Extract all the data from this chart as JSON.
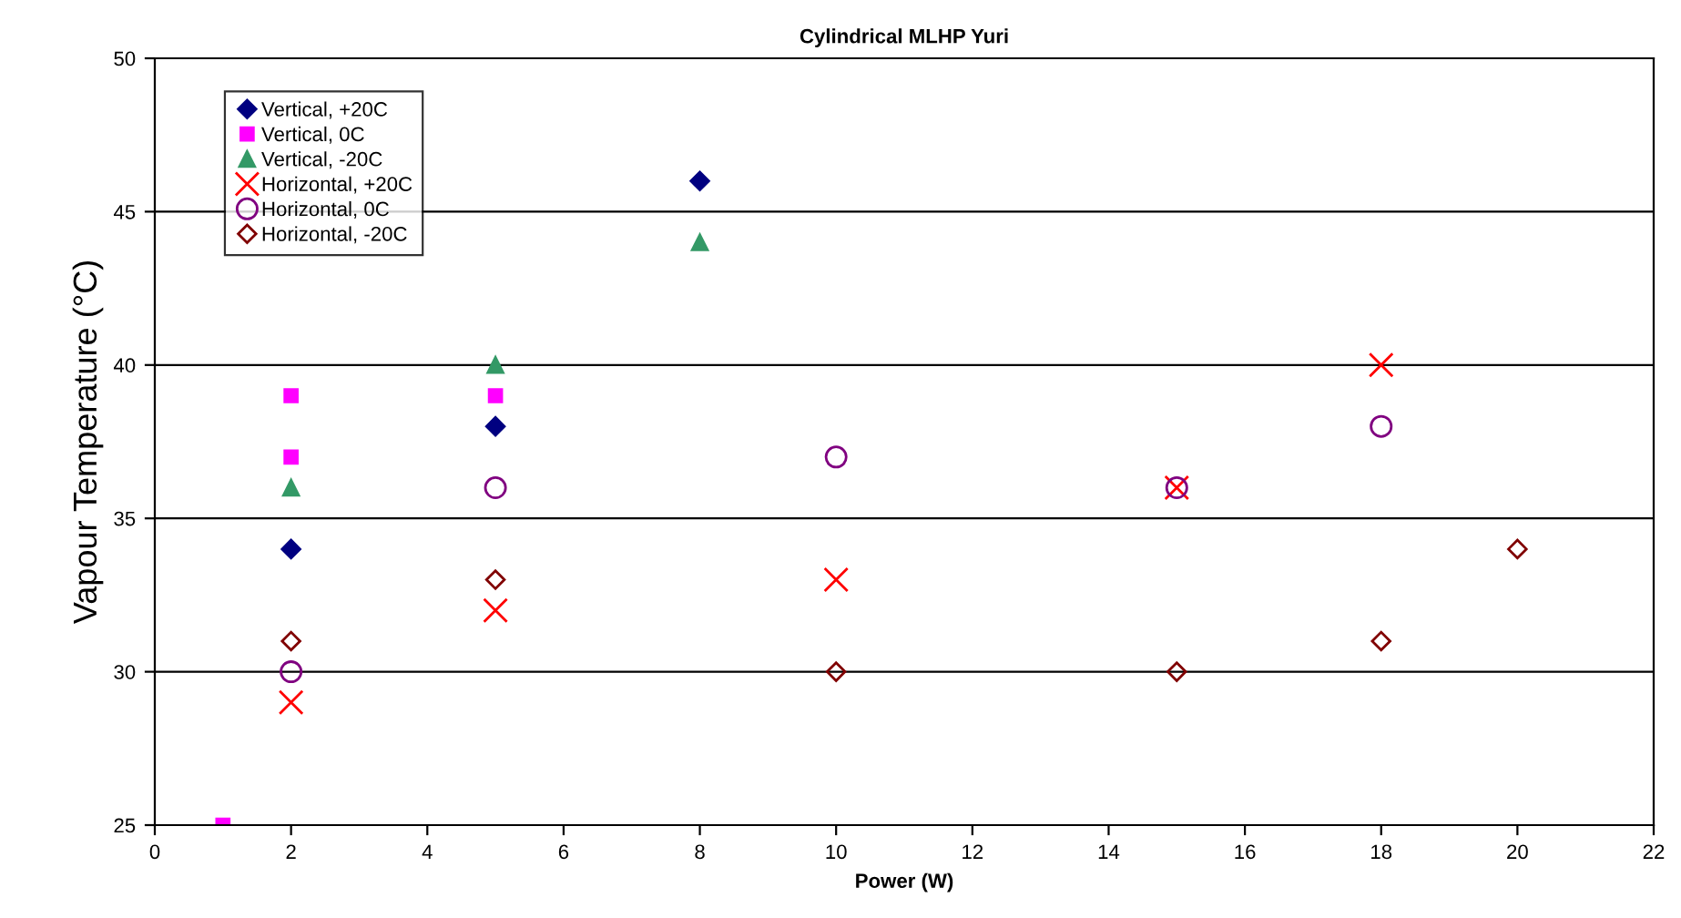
{
  "chart_data": {
    "type": "scatter",
    "title": "Cylindrical MLHP Yuri",
    "xlabel": "Power (W)",
    "ylabel": "Vapour Temperature (°C)",
    "xlim": [
      0,
      22
    ],
    "xticks": [
      0,
      2,
      4,
      6,
      8,
      10,
      12,
      14,
      16,
      18,
      20,
      22
    ],
    "ylim": [
      25,
      50
    ],
    "yticks": [
      25,
      30,
      35,
      40,
      45,
      50
    ],
    "grid": "y",
    "legend": "top left",
    "series": [
      {
        "name": "Vertical, +20C",
        "color": "#000080",
        "marker": "diamond",
        "x": [
          2,
          5,
          8
        ],
        "values": [
          34,
          38,
          46
        ]
      },
      {
        "name": "Vertical, 0C",
        "color": "#ff00ff",
        "marker": "square",
        "x": [
          1,
          2,
          2,
          5
        ],
        "values": [
          25,
          39,
          37,
          39
        ]
      },
      {
        "name": "Vertical, -20C",
        "color": "#339966",
        "marker": "triangle",
        "x": [
          2,
          5,
          8
        ],
        "values": [
          36,
          40,
          44
        ]
      },
      {
        "name": "Horizontal, +20C",
        "color": "#ff0000",
        "marker": "cross",
        "x": [
          2,
          5,
          10,
          15,
          18
        ],
        "values": [
          29,
          32,
          33,
          36,
          40
        ]
      },
      {
        "name": "Horizontal, 0C",
        "color": "#800080",
        "marker": "circle",
        "x": [
          2,
          5,
          10,
          15,
          18
        ],
        "values": [
          30,
          36,
          37,
          36,
          38
        ]
      },
      {
        "name": "Horizontal, -20C",
        "color": "#800000",
        "marker": "diamond",
        "x": [
          2,
          5,
          10,
          15,
          18,
          20
        ],
        "values": [
          31,
          33,
          30,
          30,
          31,
          34
        ]
      }
    ]
  }
}
